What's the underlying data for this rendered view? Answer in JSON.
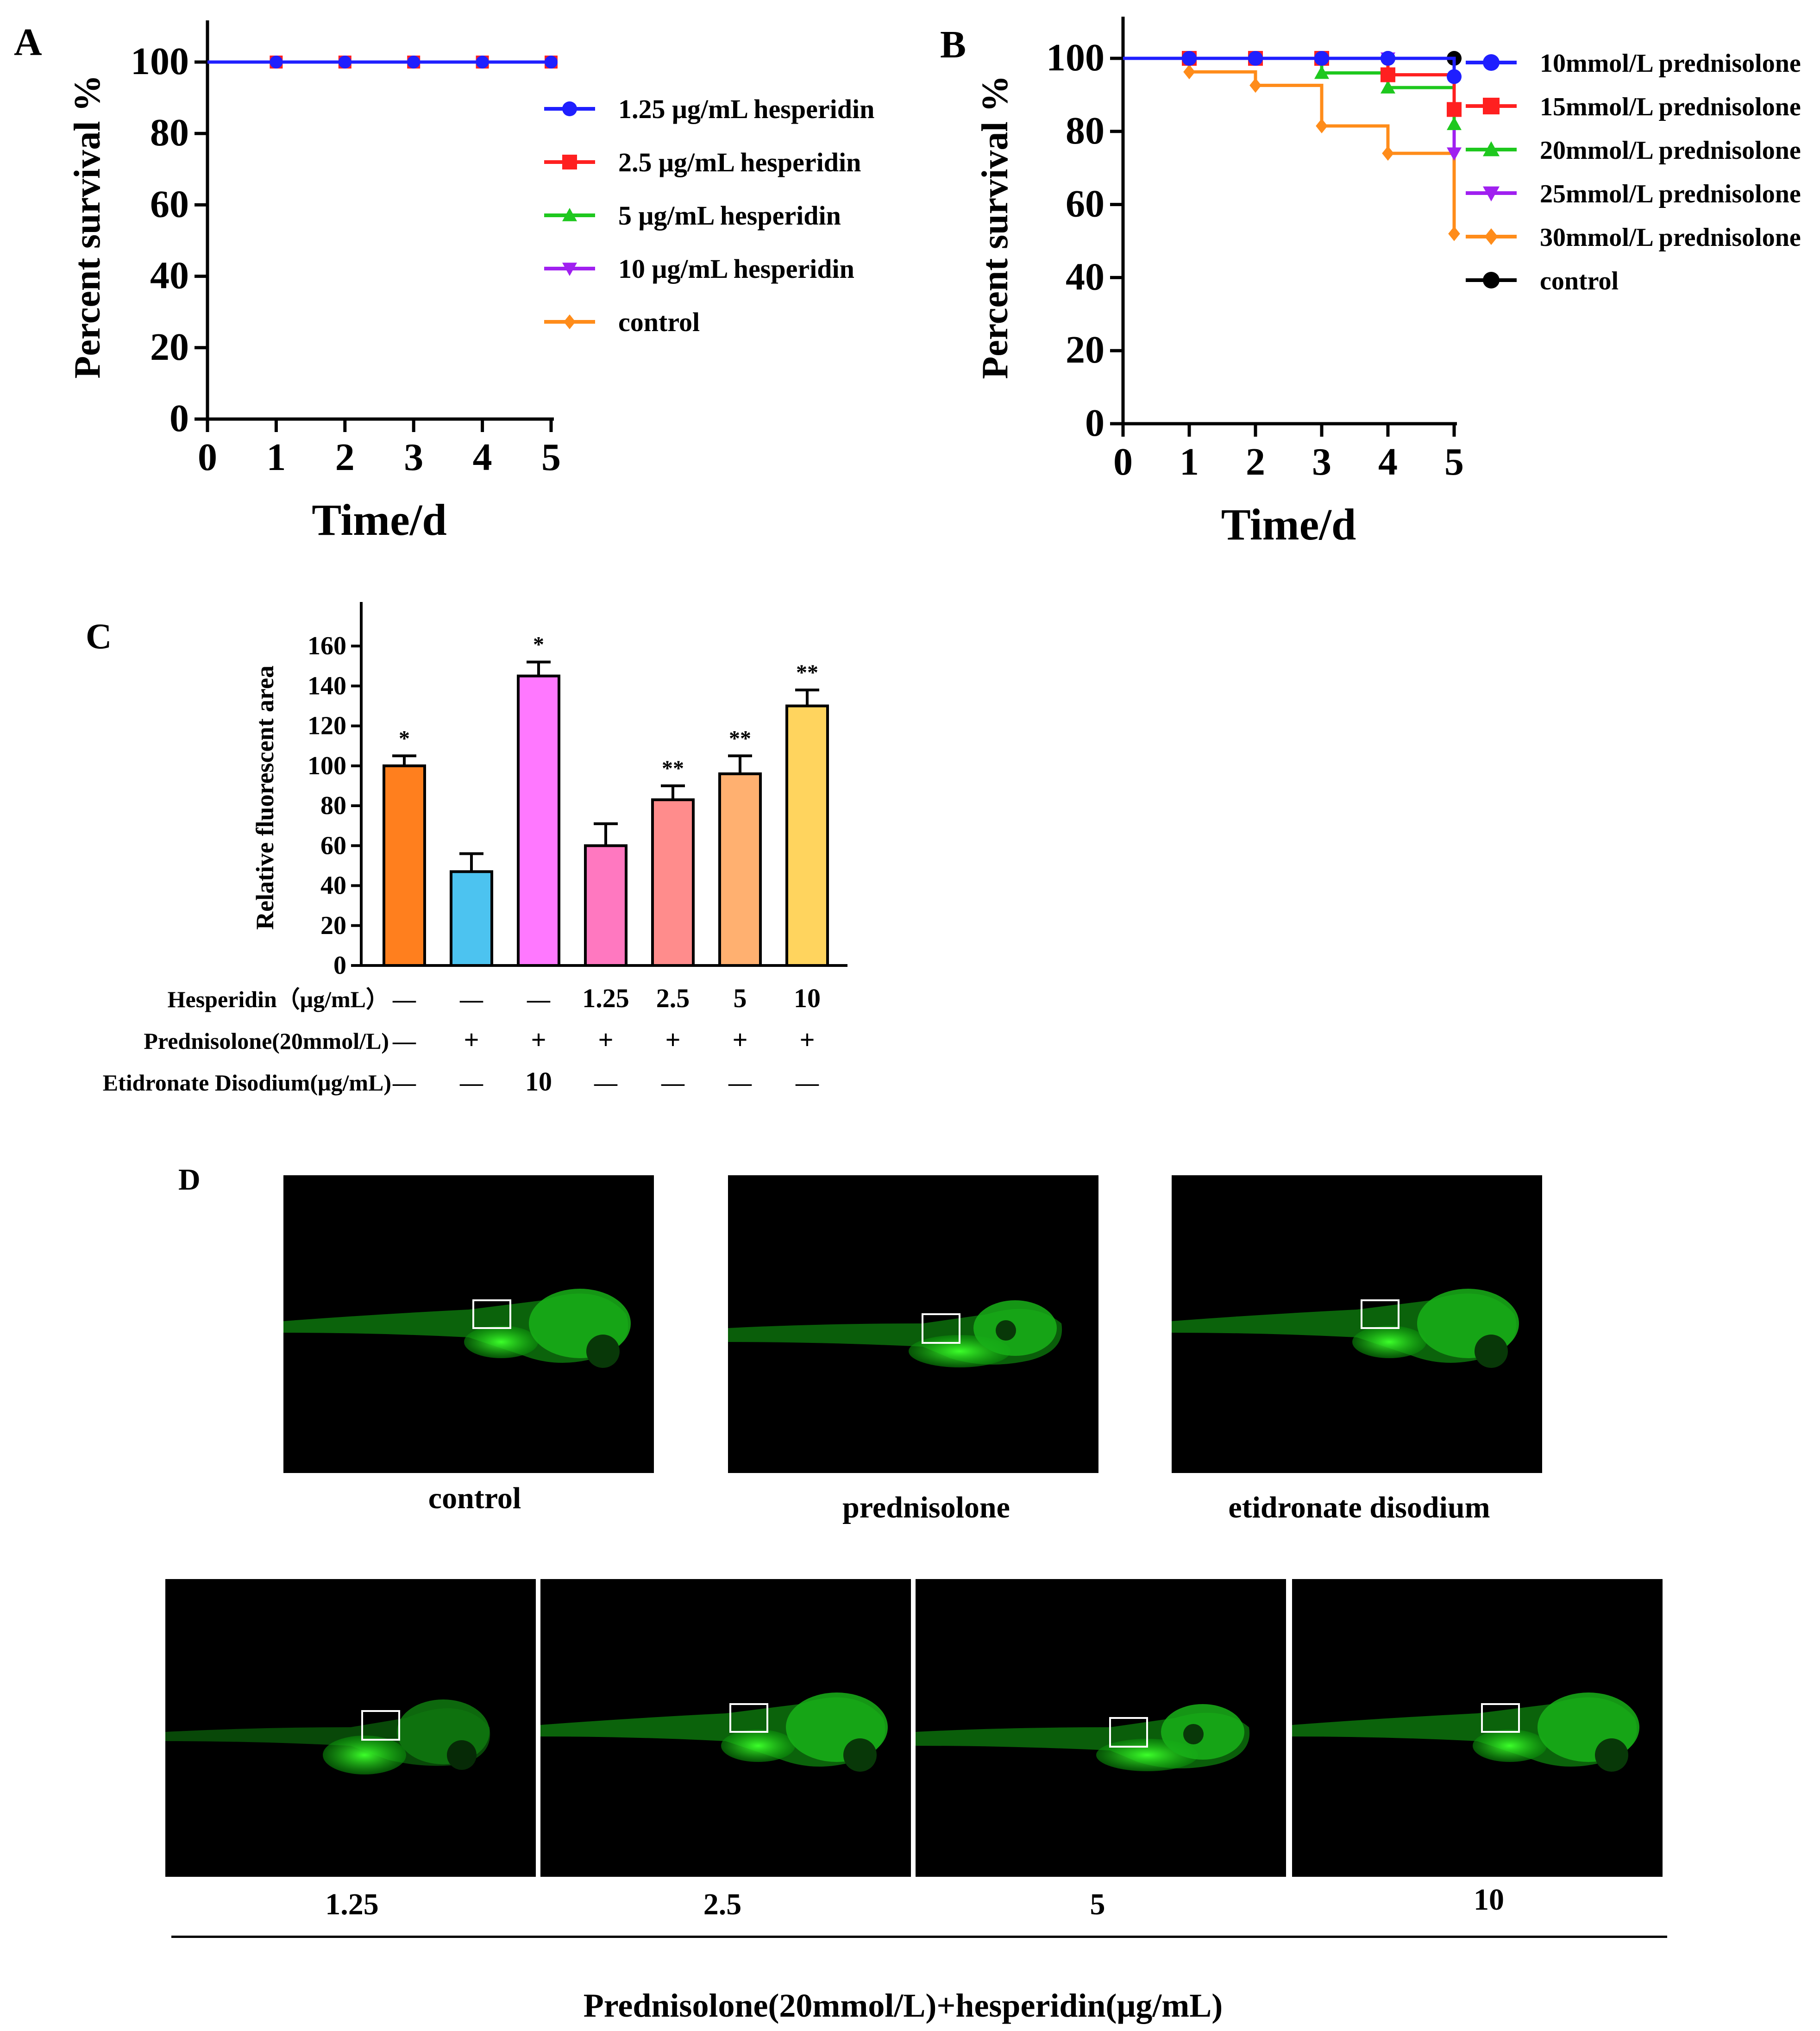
{
  "panels": {
    "A": "A",
    "B": "B",
    "C": "C",
    "D": "D"
  },
  "chart_data": [
    {
      "id": "A",
      "type": "line",
      "xlabel": "Time/d",
      "ylabel": "Percent survival %",
      "xlim": [
        0,
        5
      ],
      "ylim": [
        0,
        100
      ],
      "xticks": [
        "0",
        "1",
        "2",
        "3",
        "4",
        "5"
      ],
      "yticks": [
        "0",
        "20",
        "40",
        "60",
        "80",
        "100"
      ],
      "legend_position": "right",
      "series": [
        {
          "name": "1.25 μg/mL hesperidin",
          "color": "#1f1fff",
          "marker": "circle",
          "x": [
            0,
            1,
            2,
            3,
            4,
            5
          ],
          "y": [
            100,
            100,
            100,
            100,
            100,
            100
          ]
        },
        {
          "name": "2.5 μg/mL hesperidin",
          "color": "#ff2020",
          "marker": "square",
          "x": [
            0,
            1,
            2,
            3,
            4,
            5
          ],
          "y": [
            100,
            100,
            100,
            100,
            100,
            100
          ]
        },
        {
          "name": "5 μg/mL hesperidin",
          "color": "#1ec81e",
          "marker": "triangle-up",
          "x": [
            0,
            1,
            2,
            3,
            4,
            5
          ],
          "y": [
            100,
            100,
            100,
            100,
            100,
            100
          ]
        },
        {
          "name": "10 μg/mL hesperidin",
          "color": "#a020f0",
          "marker": "triangle-down",
          "x": [
            0,
            1,
            2,
            3,
            4,
            5
          ],
          "y": [
            100,
            100,
            100,
            100,
            100,
            100
          ]
        },
        {
          "name": "control",
          "color": "#ff8c1a",
          "marker": "diamond",
          "x": [
            0,
            1,
            2,
            3,
            4,
            5
          ],
          "y": [
            100,
            100,
            100,
            100,
            100,
            100
          ]
        }
      ]
    },
    {
      "id": "B",
      "type": "line",
      "xlabel": "Time/d",
      "ylabel": "Percent survival %",
      "xlim": [
        0,
        5
      ],
      "ylim": [
        0,
        100
      ],
      "xticks": [
        "0",
        "1",
        "2",
        "3",
        "4",
        "5"
      ],
      "yticks": [
        "0",
        "20",
        "40",
        "60",
        "80",
        "100"
      ],
      "legend_position": "right",
      "series": [
        {
          "name": "10mmol/L prednisolone",
          "color": "#1f1fff",
          "marker": "circle",
          "x": [
            0,
            1,
            2,
            3,
            4,
            5
          ],
          "y": [
            100,
            100,
            100,
            100,
            100,
            95
          ]
        },
        {
          "name": "15mmol/L prednisolone",
          "color": "#ff2020",
          "marker": "square",
          "x": [
            0,
            1,
            2,
            3,
            4,
            5
          ],
          "y": [
            100,
            100,
            100,
            100,
            95.5,
            86
          ]
        },
        {
          "name": "20mmol/L prednisolone",
          "color": "#1ec81e",
          "marker": "triangle-up",
          "x": [
            0,
            1,
            2,
            3,
            4,
            5
          ],
          "y": [
            100,
            100,
            100,
            96,
            92,
            82
          ]
        },
        {
          "name": "25mmol/L prednisolone",
          "color": "#a020f0",
          "marker": "triangle-down",
          "x": [
            0,
            1,
            2,
            3,
            4,
            5
          ],
          "y": [
            100,
            100,
            100,
            100,
            100,
            74
          ]
        },
        {
          "name": "30mmol/L prednisolone",
          "color": "#ff8c1a",
          "marker": "diamond",
          "x": [
            0,
            1,
            2,
            3,
            4,
            5
          ],
          "y": [
            100,
            96.3,
            92.6,
            81.5,
            74,
            52
          ]
        },
        {
          "name": "control",
          "color": "#000000",
          "marker": "circle",
          "x": [
            0,
            1,
            2,
            3,
            4,
            5
          ],
          "y": [
            100,
            100,
            100,
            100,
            100,
            100
          ]
        }
      ]
    },
    {
      "id": "C",
      "type": "bar",
      "ylabel": "Relative fluorescent area",
      "ylim": [
        0,
        170
      ],
      "yticks": [
        "0",
        "20",
        "40",
        "60",
        "80",
        "100",
        "120",
        "140",
        "160"
      ],
      "values": [
        100,
        47,
        145,
        60,
        83,
        96,
        130
      ],
      "errors": [
        5,
        9,
        7,
        11,
        7,
        9,
        8
      ],
      "colors": [
        "#ff7f1e",
        "#4cc3f0",
        "#ff78ff",
        "#ff78c0",
        "#ff8c8c",
        "#ffb070",
        "#ffd45e"
      ],
      "significance": [
        "*",
        "",
        "*",
        "",
        "**",
        "**",
        "**"
      ],
      "conditions": [
        {
          "label": "Hesperidin（μg/mL）",
          "values": [
            "—",
            "—",
            "—",
            "1.25",
            "2.5",
            "5",
            "10"
          ]
        },
        {
          "label": "Prednisolone(20mmol/L)",
          "values": [
            "—",
            "+",
            "+",
            "+",
            "+",
            "+",
            "+"
          ]
        },
        {
          "label": "Etidronate Disodium(μg/mL)",
          "values": [
            "—",
            "—",
            "10",
            "—",
            "—",
            "—",
            "—"
          ]
        }
      ]
    }
  ],
  "images": {
    "top": [
      "control",
      "prednisolone",
      "etidronate disodium"
    ],
    "bottom": [
      "1.25",
      "2.5",
      "5",
      "10"
    ],
    "footer": "Prednisolone(20mmol/L)+hesperidin(μg/mL)"
  }
}
